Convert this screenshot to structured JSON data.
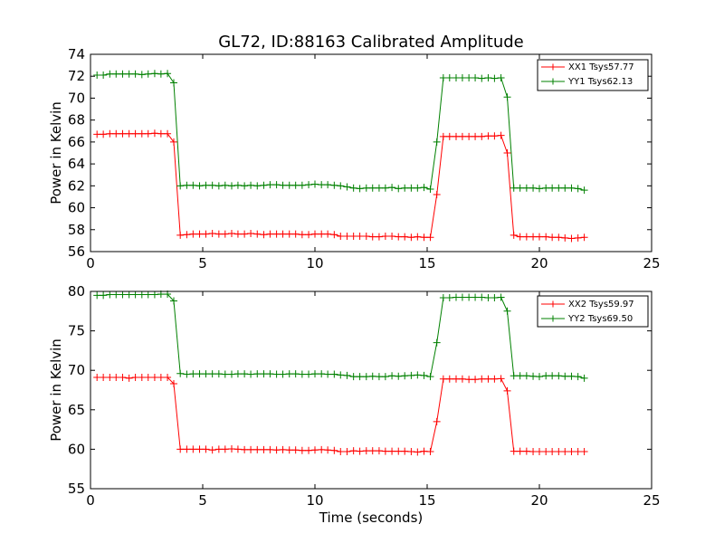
{
  "figure": {
    "title": "GL72, ID:88163 Calibrated Amplitude",
    "xlabel": "Time (seconds)"
  },
  "colors": {
    "xx": "#ff0000",
    "yy": "#008000"
  },
  "chart_data": [
    {
      "type": "line",
      "ylabel": "Power in Kelvin",
      "xlim": [
        0,
        25
      ],
      "ylim": [
        56,
        74
      ],
      "xticks": [
        0,
        5,
        10,
        15,
        20,
        25
      ],
      "yticks": [
        56,
        58,
        60,
        62,
        64,
        66,
        68,
        70,
        72,
        74
      ],
      "grid": false,
      "legend_position": "top-right",
      "x": [
        0.29,
        0.57,
        0.86,
        1.14,
        1.43,
        1.72,
        2.0,
        2.29,
        2.57,
        2.86,
        3.14,
        3.43,
        3.71,
        4.0,
        4.29,
        4.57,
        4.86,
        5.14,
        5.43,
        5.72,
        6.0,
        6.29,
        6.57,
        6.86,
        7.14,
        7.43,
        7.72,
        8.0,
        8.29,
        8.57,
        8.86,
        9.14,
        9.43,
        9.72,
        10.0,
        10.29,
        10.57,
        10.86,
        11.14,
        11.43,
        11.72,
        12.0,
        12.29,
        12.57,
        12.86,
        13.14,
        13.43,
        13.72,
        14.0,
        14.29,
        14.57,
        14.86,
        15.14,
        15.43,
        15.72,
        16.0,
        16.29,
        16.57,
        16.86,
        17.14,
        17.43,
        17.72,
        18.0,
        18.29,
        18.57,
        18.86,
        19.14,
        19.43,
        19.72,
        20.0,
        20.29,
        20.57,
        20.86,
        21.14,
        21.43,
        21.72,
        22.0
      ],
      "series": [
        {
          "name": "XX1 Tsys57.77",
          "color": "#ff0000",
          "values": [
            66.7,
            66.7,
            66.75,
            66.75,
            66.75,
            66.75,
            66.75,
            66.75,
            66.75,
            66.8,
            66.75,
            66.75,
            66.0,
            57.5,
            57.55,
            57.6,
            57.6,
            57.6,
            57.65,
            57.6,
            57.6,
            57.65,
            57.6,
            57.6,
            57.65,
            57.6,
            57.55,
            57.6,
            57.6,
            57.6,
            57.6,
            57.6,
            57.55,
            57.55,
            57.6,
            57.6,
            57.6,
            57.55,
            57.4,
            57.4,
            57.4,
            57.4,
            57.4,
            57.35,
            57.35,
            57.4,
            57.4,
            57.35,
            57.35,
            57.3,
            57.35,
            57.3,
            57.3,
            61.2,
            66.5,
            66.5,
            66.5,
            66.5,
            66.5,
            66.5,
            66.5,
            66.55,
            66.55,
            66.6,
            65.0,
            57.5,
            57.35,
            57.35,
            57.35,
            57.35,
            57.35,
            57.3,
            57.3,
            57.25,
            57.2,
            57.25,
            57.3
          ]
        },
        {
          "name": "YY1 Tsys62.13",
          "color": "#008000",
          "values": [
            72.1,
            72.1,
            72.2,
            72.2,
            72.2,
            72.2,
            72.2,
            72.15,
            72.2,
            72.25,
            72.2,
            72.25,
            71.4,
            62.0,
            62.05,
            62.05,
            62.0,
            62.05,
            62.05,
            62.0,
            62.05,
            62.0,
            62.05,
            62.0,
            62.05,
            62.0,
            62.05,
            62.1,
            62.1,
            62.05,
            62.05,
            62.05,
            62.05,
            62.1,
            62.15,
            62.1,
            62.1,
            62.05,
            62.0,
            61.9,
            61.8,
            61.75,
            61.8,
            61.8,
            61.8,
            61.8,
            61.85,
            61.75,
            61.8,
            61.8,
            61.8,
            61.85,
            61.7,
            66.0,
            71.85,
            71.85,
            71.85,
            71.85,
            71.85,
            71.85,
            71.8,
            71.85,
            71.8,
            71.85,
            70.1,
            61.8,
            61.8,
            61.8,
            61.8,
            61.75,
            61.8,
            61.8,
            61.8,
            61.8,
            61.8,
            61.75,
            61.6
          ]
        }
      ]
    },
    {
      "type": "line",
      "ylabel": "Power in Kelvin",
      "xlim": [
        0,
        25
      ],
      "ylim": [
        55,
        80
      ],
      "xticks": [
        0,
        5,
        10,
        15,
        20,
        25
      ],
      "yticks": [
        55,
        60,
        65,
        70,
        75,
        80
      ],
      "grid": false,
      "legend_position": "top-right",
      "x": [
        0.29,
        0.57,
        0.86,
        1.14,
        1.43,
        1.72,
        2.0,
        2.29,
        2.57,
        2.86,
        3.14,
        3.43,
        3.71,
        4.0,
        4.29,
        4.57,
        4.86,
        5.14,
        5.43,
        5.72,
        6.0,
        6.29,
        6.57,
        6.86,
        7.14,
        7.43,
        7.72,
        8.0,
        8.29,
        8.57,
        8.86,
        9.14,
        9.43,
        9.72,
        10.0,
        10.29,
        10.57,
        10.86,
        11.14,
        11.43,
        11.72,
        12.0,
        12.29,
        12.57,
        12.86,
        13.14,
        13.43,
        13.72,
        14.0,
        14.29,
        14.57,
        14.86,
        15.14,
        15.43,
        15.72,
        16.0,
        16.29,
        16.57,
        16.86,
        17.14,
        17.43,
        17.72,
        18.0,
        18.29,
        18.57,
        18.86,
        19.14,
        19.43,
        19.72,
        20.0,
        20.29,
        20.57,
        20.86,
        21.14,
        21.43,
        21.72,
        22.0
      ],
      "series": [
        {
          "name": "XX2 Tsys59.97",
          "color": "#ff0000",
          "values": [
            69.1,
            69.1,
            69.1,
            69.1,
            69.1,
            69.0,
            69.1,
            69.1,
            69.1,
            69.1,
            69.1,
            69.1,
            68.3,
            60.0,
            60.0,
            60.0,
            60.0,
            60.0,
            59.9,
            60.0,
            60.0,
            60.05,
            60.0,
            59.95,
            59.95,
            59.95,
            59.95,
            59.95,
            59.9,
            59.95,
            59.9,
            59.9,
            59.85,
            59.85,
            59.9,
            59.95,
            59.9,
            59.85,
            59.7,
            59.7,
            59.8,
            59.75,
            59.8,
            59.8,
            59.8,
            59.75,
            59.75,
            59.75,
            59.75,
            59.7,
            59.65,
            59.75,
            59.7,
            63.5,
            68.9,
            68.9,
            68.9,
            68.9,
            68.85,
            68.85,
            68.9,
            68.9,
            68.9,
            68.95,
            67.4,
            59.75,
            59.75,
            59.75,
            59.7,
            59.7,
            59.7,
            59.7,
            59.7,
            59.7,
            59.7,
            59.7,
            59.7
          ]
        },
        {
          "name": "YY2 Tsys69.50",
          "color": "#008000",
          "values": [
            79.5,
            79.5,
            79.6,
            79.6,
            79.6,
            79.6,
            79.6,
            79.6,
            79.6,
            79.6,
            79.65,
            79.65,
            78.8,
            69.6,
            69.5,
            69.55,
            69.55,
            69.55,
            69.55,
            69.55,
            69.5,
            69.5,
            69.55,
            69.55,
            69.5,
            69.55,
            69.55,
            69.55,
            69.5,
            69.5,
            69.55,
            69.55,
            69.5,
            69.5,
            69.55,
            69.55,
            69.5,
            69.5,
            69.4,
            69.35,
            69.2,
            69.2,
            69.2,
            69.25,
            69.2,
            69.2,
            69.3,
            69.25,
            69.3,
            69.35,
            69.4,
            69.35,
            69.2,
            73.5,
            79.2,
            79.2,
            79.25,
            79.25,
            79.25,
            79.25,
            79.25,
            79.2,
            79.2,
            79.25,
            77.5,
            69.3,
            69.3,
            69.3,
            69.25,
            69.2,
            69.3,
            69.3,
            69.3,
            69.25,
            69.25,
            69.2,
            69.0
          ]
        }
      ]
    }
  ]
}
